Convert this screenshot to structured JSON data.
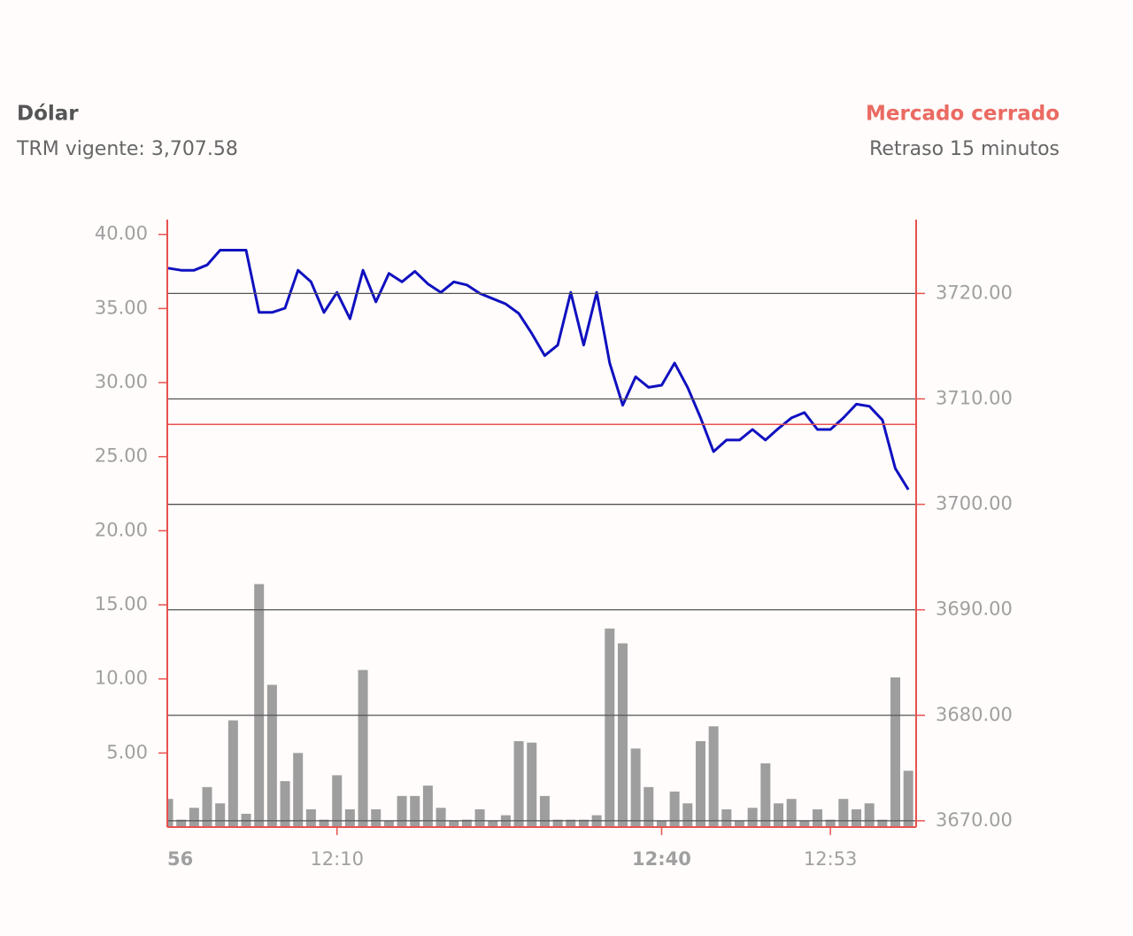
{
  "header": {
    "title": "Dólar",
    "subtitle": "TRM vigente: 3,707.58",
    "status": "Mercado cerrado",
    "delay": "Retraso 15 minutos"
  },
  "chart_data": {
    "type": "bar-line",
    "categories": [
      null,
      "56",
      null,
      null,
      null,
      null,
      null,
      null,
      null,
      null,
      null,
      null,
      null,
      "12:10",
      null,
      null,
      null,
      null,
      null,
      null,
      null,
      null,
      null,
      null,
      null,
      null,
      null,
      null,
      null,
      null,
      null,
      null,
      null,
      null,
      null,
      null,
      null,
      null,
      "12:40",
      null,
      null,
      null,
      null,
      null,
      null,
      null,
      null,
      null,
      null,
      null,
      null,
      "12:53",
      null,
      null,
      null,
      null,
      null,
      null
    ],
    "series": [
      {
        "type": "bar",
        "color": "#9e9e9e",
        "axis": "y",
        "values": [
          1.9,
          0.5,
          1.3,
          2.7,
          1.6,
          7.2,
          0.9,
          16.4,
          9.6,
          3.1,
          5.0,
          1.2,
          0.5,
          3.5,
          1.2,
          10.6,
          1.2,
          0.4,
          2.1,
          2.1,
          2.8,
          1.3,
          0.4,
          0.5,
          1.2,
          0.4,
          0.8,
          5.8,
          5.7,
          2.1,
          0.5,
          0.5,
          0.5,
          0.8,
          13.4,
          12.4,
          5.3,
          2.7,
          0.4,
          2.4,
          1.6,
          5.8,
          6.8,
          1.2,
          0.4,
          1.3,
          4.3,
          1.6,
          1.9,
          0.4,
          1.2,
          0.5,
          1.9,
          1.2,
          1.6,
          0.5,
          10.1,
          3.8
        ]
      },
      {
        "type": "line",
        "color": "#1010c0",
        "axis": "y2",
        "values": [
          3722.4,
          3722.2,
          3722.2,
          3722.7,
          3724.1,
          3724.1,
          3724.1,
          3718.2,
          3718.2,
          3718.6,
          3722.2,
          3721.1,
          3718.2,
          3720.1,
          3717.6,
          3722.2,
          3719.2,
          3721.9,
          3721.1,
          3722.1,
          3720.9,
          3720.1,
          3721.1,
          3720.8,
          3720.0,
          3719.5,
          3719.0,
          3718.1,
          3716.2,
          3714.1,
          3715.1,
          3720.1,
          3715.1,
          3720.1,
          3713.4,
          3709.4,
          3712.1,
          3711.1,
          3711.3,
          3713.4,
          3711.1,
          3708.2,
          3705.0,
          3706.1,
          3706.1,
          3707.1,
          3706.1,
          3707.2,
          3708.2,
          3708.7,
          3707.1,
          3707.1,
          3708.2,
          3709.5,
          3709.3,
          3708.0,
          3703.4,
          3701.4
        ]
      }
    ],
    "ylim": [
      0,
      41
    ],
    "yticks": [
      {
        "value": 5,
        "label": "5.00"
      },
      {
        "value": 10,
        "label": "10.00"
      },
      {
        "value": 15,
        "label": "15.00"
      },
      {
        "value": 20,
        "label": "20.00"
      },
      {
        "value": 25,
        "label": "25.00"
      },
      {
        "value": 30,
        "label": "30.00"
      },
      {
        "value": 35,
        "label": "35.00"
      },
      {
        "value": 40,
        "label": "40.00"
      }
    ],
    "y2lim": [
      3669.4,
      3727
    ],
    "y2ticks": [
      {
        "value": 3670,
        "label": "3670.00"
      },
      {
        "value": 3680,
        "label": "3680.00"
      },
      {
        "value": 3690,
        "label": "3690.00"
      },
      {
        "value": 3700,
        "label": "3700.00"
      },
      {
        "value": 3710,
        "label": "3710.00"
      },
      {
        "value": 3720,
        "label": "3720.00"
      }
    ],
    "reference_line": 3707.58,
    "reference_color": "#e8524f",
    "grid": true
  }
}
